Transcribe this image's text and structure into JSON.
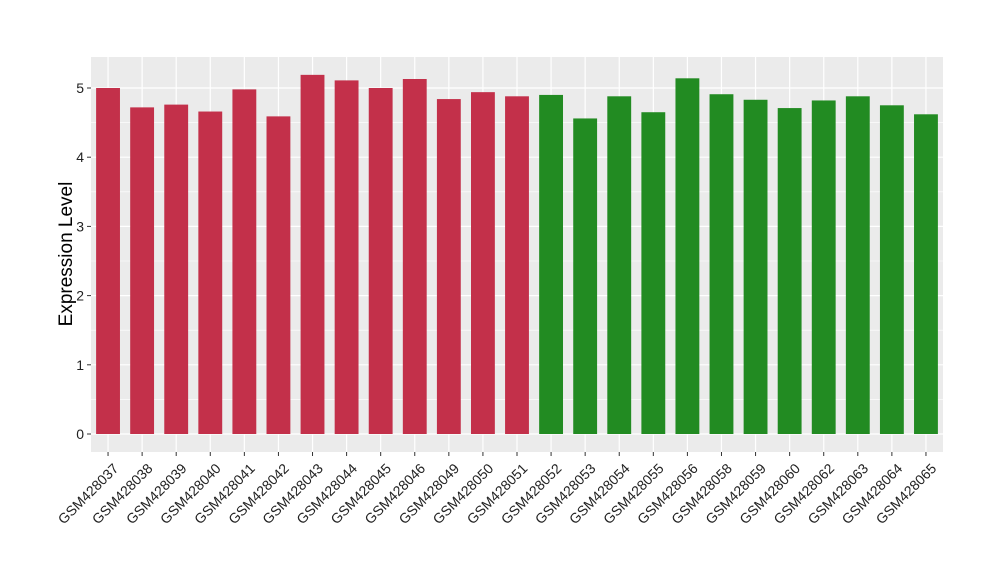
{
  "chart_data": {
    "type": "bar",
    "ylabel": "Expression Level",
    "xlabel": "",
    "ylim": [
      0,
      5.45
    ],
    "yticks": [
      0,
      1,
      2,
      3,
      4,
      5
    ],
    "grid": true,
    "colors": {
      "group1": "#C3304A",
      "group2": "#228B22",
      "panel": "#EBEBEB",
      "grid": "#FFFFFF"
    },
    "categories": [
      "GSM428037",
      "GSM428038",
      "GSM428039",
      "GSM428040",
      "GSM428041",
      "GSM428042",
      "GSM428043",
      "GSM428044",
      "GSM428045",
      "GSM428046",
      "GSM428049",
      "GSM428050",
      "GSM428051",
      "GSM428052",
      "GSM428053",
      "GSM428054",
      "GSM428055",
      "GSM428056",
      "GSM428058",
      "GSM428059",
      "GSM428060",
      "GSM428062",
      "GSM428063",
      "GSM428064",
      "GSM428065"
    ],
    "values": [
      5.0,
      4.72,
      4.76,
      4.66,
      4.98,
      4.59,
      5.19,
      5.11,
      5.0,
      5.13,
      4.84,
      4.94,
      4.88,
      4.9,
      4.56,
      4.88,
      4.65,
      5.14,
      4.91,
      4.83,
      4.71,
      4.82,
      4.88,
      4.75,
      4.62
    ],
    "groups": [
      "group1",
      "group1",
      "group1",
      "group1",
      "group1",
      "group1",
      "group1",
      "group1",
      "group1",
      "group1",
      "group1",
      "group1",
      "group1",
      "group2",
      "group2",
      "group2",
      "group2",
      "group2",
      "group2",
      "group2",
      "group2",
      "group2",
      "group2",
      "group2",
      "group2"
    ]
  }
}
